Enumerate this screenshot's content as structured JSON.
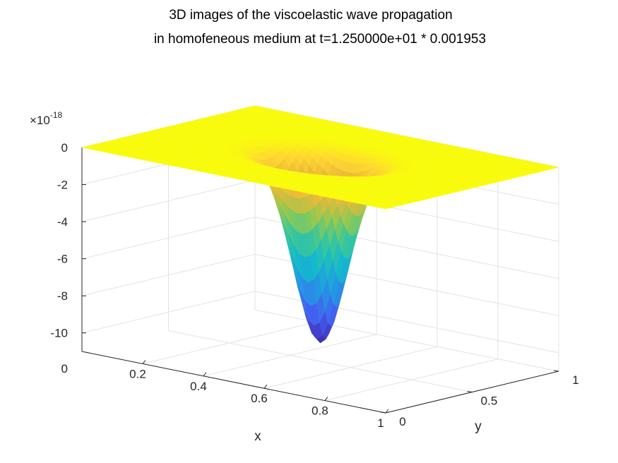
{
  "chart_data": {
    "type": "surface",
    "title": [
      "3D images of the viscoelastic wave propagation",
      "in homofeneous medium at t=1.250000e+01 * 0.001953"
    ],
    "xlabel": "x",
    "ylabel": "y",
    "zlabel": "",
    "xlim": [
      0,
      1
    ],
    "ylim": [
      0,
      1
    ],
    "zlim": [
      -1.1e-17,
      0
    ],
    "x_ticks": [
      {
        "value": 0.2,
        "label": "0.2"
      },
      {
        "value": 0.4,
        "label": "0.4"
      },
      {
        "value": 0.6,
        "label": "0.6"
      },
      {
        "value": 0.8,
        "label": "0.8"
      },
      {
        "value": 1,
        "label": "1"
      }
    ],
    "y_ticks": [
      {
        "value": 0,
        "label": "0"
      },
      {
        "value": 0.5,
        "label": "0.5"
      },
      {
        "value": 1,
        "label": "1"
      }
    ],
    "z_ticks": [
      {
        "value": 0,
        "label": "0"
      },
      {
        "value": -2,
        "label": "-2"
      },
      {
        "value": -4,
        "label": "-4"
      },
      {
        "value": -6,
        "label": "-6"
      },
      {
        "value": -8,
        "label": "-8"
      },
      {
        "value": -10,
        "label": "-10"
      }
    ],
    "z_bottom_label": "0",
    "z_exponent_text": "×10",
    "z_exponent_power": "-18",
    "surface": {
      "description": "surface z(x,y) = -A * exp(-r^2/w^2) centred at (cx, cy)",
      "center_x": 0.5,
      "center_y": 0.5,
      "width": 0.11,
      "amplitude": 1e-17
    },
    "colormap": "parula",
    "grid": true
  }
}
